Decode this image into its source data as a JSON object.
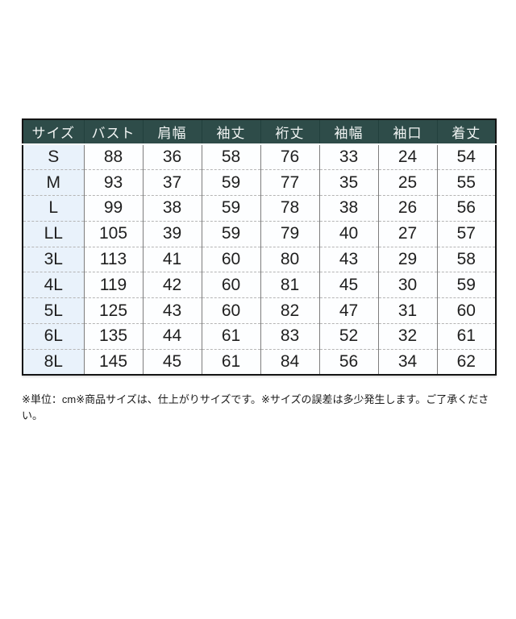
{
  "table": {
    "headers": [
      "サイズ",
      "バスト",
      "肩幅",
      "袖丈",
      "裄丈",
      "袖幅",
      "袖口",
      "着丈"
    ],
    "rows": [
      [
        "S",
        "88",
        "36",
        "58",
        "76",
        "33",
        "24",
        "54"
      ],
      [
        "M",
        "93",
        "37",
        "59",
        "77",
        "35",
        "25",
        "55"
      ],
      [
        "L",
        "99",
        "38",
        "59",
        "78",
        "38",
        "26",
        "56"
      ],
      [
        "LL",
        "105",
        "39",
        "59",
        "79",
        "40",
        "27",
        "57"
      ],
      [
        "3L",
        "113",
        "41",
        "60",
        "80",
        "43",
        "29",
        "58"
      ],
      [
        "4L",
        "119",
        "42",
        "60",
        "81",
        "45",
        "30",
        "59"
      ],
      [
        "5L",
        "125",
        "43",
        "60",
        "82",
        "47",
        "31",
        "60"
      ],
      [
        "6L",
        "135",
        "44",
        "61",
        "83",
        "52",
        "32",
        "61"
      ],
      [
        "8L",
        "145",
        "45",
        "61",
        "84",
        "56",
        "34",
        "62"
      ]
    ]
  },
  "note": "※単位：cm※商品サイズは、仕上がりサイズです。※サイズの誤差は多少発生します。ご了承ください。",
  "colors": {
    "header_bg": "#2e4c49",
    "header_text": "#f2f5f4",
    "size_column_bg": "#e9f2fb",
    "outer_border": "#141414"
  }
}
